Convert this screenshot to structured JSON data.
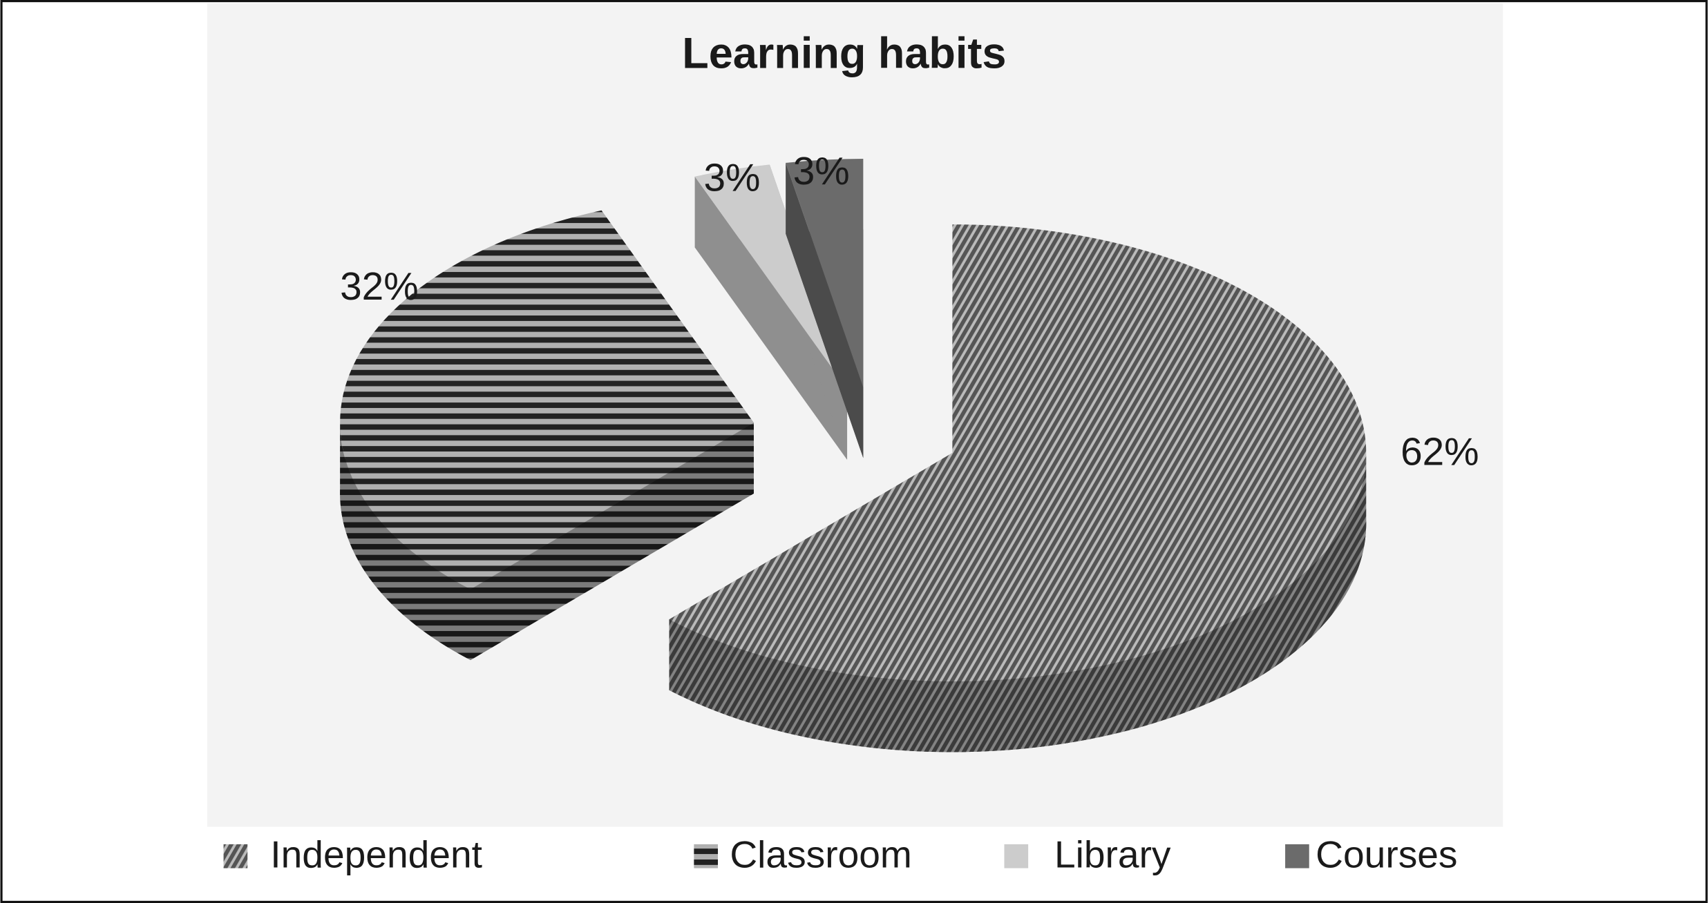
{
  "chart_data": {
    "type": "pie",
    "title": "Learning habits",
    "categories": [
      "Independent",
      "Classroom",
      "Library",
      "Courses"
    ],
    "values": [
      62,
      32,
      3,
      3
    ],
    "value_labels": [
      "62%",
      "32%",
      "3%",
      "3%"
    ],
    "colors": [
      "#555555",
      "#222222",
      "#cccccc",
      "#6b6b6b"
    ],
    "patterns": [
      "diagonal",
      "horizontal",
      "solid",
      "solid"
    ],
    "legend": "bottom"
  }
}
